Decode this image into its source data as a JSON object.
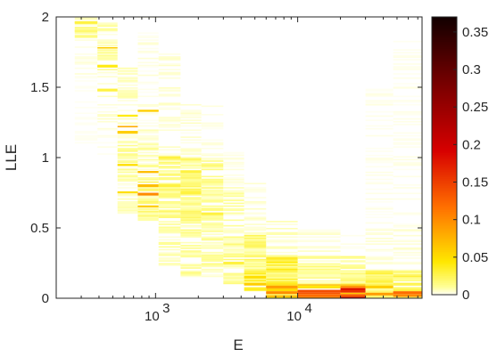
{
  "chart_data": {
    "type": "heatmap",
    "title": "",
    "xlabel": "E",
    "ylabel": "LLE",
    "x_scale": "log",
    "xlim": [
      200,
      75000
    ],
    "ylim": [
      0,
      2
    ],
    "x_ticks": [
      {
        "value": 1000,
        "base": "10",
        "exp": "3"
      },
      {
        "value": 10000,
        "base": "10",
        "exp": "4"
      }
    ],
    "y_ticks": [
      {
        "value": 0,
        "label": "0"
      },
      {
        "value": 0.5,
        "label": "0.5"
      },
      {
        "value": 1,
        "label": "1"
      },
      {
        "value": 1.5,
        "label": "1.5"
      },
      {
        "value": 2,
        "label": "2"
      }
    ],
    "colorbar": {
      "colormap": "hot (reversed)",
      "range": [
        0,
        0.37
      ],
      "ticks": [
        {
          "value": 0,
          "label": "0"
        },
        {
          "value": 0.05,
          "label": "0.05"
        },
        {
          "value": 0.1,
          "label": "0.1"
        },
        {
          "value": 0.15,
          "label": "0.15"
        },
        {
          "value": 0.2,
          "label": "0.2"
        },
        {
          "value": 0.25,
          "label": "0.25"
        },
        {
          "value": 0.3,
          "label": "0.3"
        },
        {
          "value": 0.35,
          "label": "0.35"
        }
      ]
    },
    "bins": {
      "x_bin_edges": [
        270,
        390,
        540,
        750,
        1050,
        1500,
        2100,
        3000,
        4200,
        6000,
        10000,
        20000,
        30000,
        47000,
        75000
      ],
      "y_bin_width": 0.01,
      "columns": [
        {
          "ranges": [
            [
              1.85,
              2.0,
              0.012
            ],
            [
              1.55,
              1.85,
              0.003
            ],
            [
              1.1,
              1.55,
              0.001
            ]
          ],
          "hot": [
            [
              1.96,
              0.03
            ],
            [
              1.9,
              0.02
            ]
          ]
        },
        {
          "ranges": [
            [
              1.6,
              2.0,
              0.008
            ],
            [
              1.2,
              1.6,
              0.004
            ],
            [
              1.0,
              1.2,
              0.002
            ]
          ],
          "hot": [
            [
              1.78,
              0.06
            ],
            [
              1.65,
              0.04
            ],
            [
              1.48,
              0.03
            ]
          ]
        },
        {
          "ranges": [
            [
              1.1,
              1.65,
              0.006
            ],
            [
              0.85,
              1.1,
              0.01
            ],
            [
              0.6,
              0.85,
              0.006
            ]
          ],
          "hot": [
            [
              1.22,
              0.08
            ],
            [
              1.18,
              0.06
            ],
            [
              1.3,
              0.04
            ],
            [
              0.95,
              0.05
            ],
            [
              0.75,
              0.05
            ]
          ]
        },
        {
          "ranges": [
            [
              1.2,
              2.0,
              0.003
            ],
            [
              0.85,
              1.2,
              0.008
            ],
            [
              0.55,
              0.85,
              0.014
            ]
          ],
          "hot": [
            [
              1.33,
              0.06
            ],
            [
              0.9,
              0.07
            ],
            [
              0.8,
              0.07
            ],
            [
              0.74,
              0.1
            ],
            [
              0.65,
              0.06
            ]
          ]
        },
        {
          "ranges": [
            [
              1.0,
              1.75,
              0.004
            ],
            [
              0.55,
              1.0,
              0.014
            ],
            [
              0.2,
              0.55,
              0.008
            ]
          ],
          "hot": [
            [
              1.0,
              0.03
            ],
            [
              0.8,
              0.03
            ]
          ]
        },
        {
          "ranges": [
            [
              1.0,
              1.4,
              0.004
            ],
            [
              0.55,
              1.0,
              0.016
            ],
            [
              0.15,
              0.55,
              0.01
            ]
          ],
          "hot": [
            [
              0.9,
              0.03
            ],
            [
              0.75,
              0.03
            ]
          ]
        },
        {
          "ranges": [
            [
              1.0,
              1.4,
              0.003
            ],
            [
              0.55,
              1.0,
              0.012
            ],
            [
              0.15,
              0.55,
              0.01
            ]
          ],
          "hot": [
            [
              0.6,
              0.03
            ]
          ]
        },
        {
          "ranges": [
            [
              0.8,
              1.05,
              0.003
            ],
            [
              0.45,
              0.8,
              0.008
            ],
            [
              0.1,
              0.45,
              0.012
            ]
          ],
          "hot": [
            [
              0.25,
              0.03
            ]
          ]
        },
        {
          "ranges": [
            [
              0.45,
              0.85,
              0.004
            ],
            [
              0.2,
              0.45,
              0.016
            ],
            [
              0.05,
              0.2,
              0.03
            ]
          ],
          "hot": [
            [
              0.15,
              0.05
            ],
            [
              0.1,
              0.06
            ]
          ]
        },
        {
          "ranges": [
            [
              0.3,
              0.55,
              0.006
            ],
            [
              0.1,
              0.3,
              0.03
            ],
            [
              0.0,
              0.1,
              0.07
            ]
          ],
          "hot": [
            [
              0.08,
              0.09
            ],
            [
              0.04,
              0.1
            ]
          ]
        },
        {
          "ranges": [
            [
              0.3,
              0.5,
              0.004
            ],
            [
              0.1,
              0.3,
              0.012
            ],
            [
              0.0,
              0.1,
              0.11
            ]
          ],
          "hot": [
            [
              0.05,
              0.14
            ],
            [
              0.02,
              0.12
            ]
          ]
        },
        {
          "ranges": [
            [
              0.3,
              0.45,
              0.003
            ],
            [
              0.1,
              0.3,
              0.012
            ],
            [
              0.0,
              0.1,
              0.14
            ]
          ],
          "hot": [
            [
              0.05,
              0.16
            ],
            [
              0.02,
              0.13
            ]
          ]
        },
        {
          "ranges": [
            [
              0.5,
              1.5,
              0.002
            ],
            [
              0.2,
              0.5,
              0.004
            ],
            [
              0.0,
              0.2,
              0.02
            ]
          ],
          "hot": [
            [
              0.08,
              0.06
            ],
            [
              0.03,
              0.09
            ]
          ]
        },
        {
          "ranges": [
            [
              0.5,
              1.85,
              0.002
            ],
            [
              0.2,
              0.5,
              0.004
            ],
            [
              0.0,
              0.2,
              0.02
            ]
          ],
          "hot": [
            [
              0.04,
              0.12
            ],
            [
              0.02,
              0.1
            ]
          ]
        }
      ]
    }
  }
}
